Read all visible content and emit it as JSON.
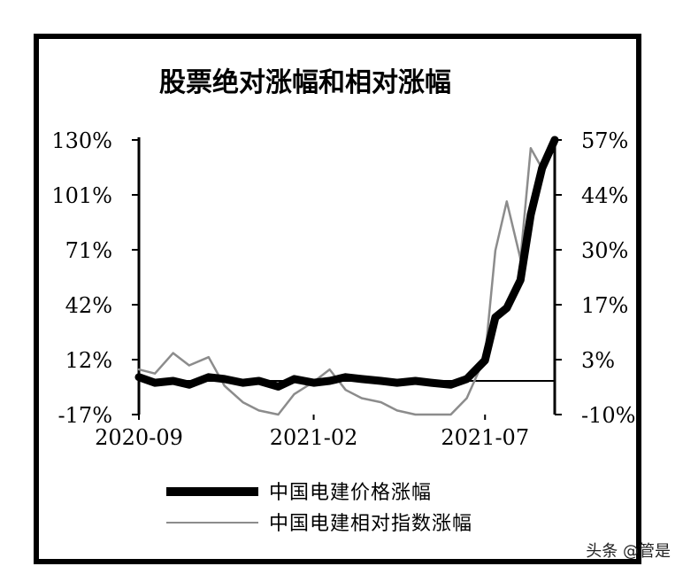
{
  "chart_data": {
    "type": "line",
    "title": "股票绝对涨幅和相对涨幅",
    "left_axis": {
      "ticks": [
        "130%",
        "101%",
        "71%",
        "42%",
        "12%",
        "-17%"
      ],
      "ylim": [
        -17,
        130
      ]
    },
    "right_axis": {
      "ticks": [
        "57%",
        "44%",
        "30%",
        "17%",
        "3%",
        "-10%"
      ],
      "ylim": [
        -10,
        57
      ]
    },
    "x_ticks": [
      "2020-09",
      "2021-02",
      "2021-07"
    ],
    "x_range": [
      "2020-09-01",
      "2021-08-31"
    ],
    "series": [
      {
        "name": "中国电建价格涨幅",
        "axis": "left",
        "color": "#000000",
        "x": [
          "2020-09-01",
          "2020-09-15",
          "2020-10-01",
          "2020-10-15",
          "2020-11-01",
          "2020-11-15",
          "2020-12-01",
          "2020-12-15",
          "2021-01-01",
          "2021-01-15",
          "2021-02-01",
          "2021-02-15",
          "2021-03-01",
          "2021-03-15",
          "2021-04-01",
          "2021-04-15",
          "2021-05-01",
          "2021-05-15",
          "2021-06-01",
          "2021-06-15",
          "2021-07-01",
          "2021-07-10",
          "2021-07-20",
          "2021-08-01",
          "2021-08-10",
          "2021-08-20",
          "2021-08-31"
        ],
        "y": [
          3,
          0,
          1,
          -1,
          3,
          2,
          0,
          1,
          -2,
          2,
          0,
          1,
          3,
          2,
          1,
          0,
          1,
          0,
          -1,
          2,
          12,
          35,
          40,
          55,
          90,
          115,
          130
        ]
      },
      {
        "name": "中国电建相对指数涨幅",
        "axis": "right",
        "color": "#8c8c8c",
        "x": [
          "2020-09-01",
          "2020-09-15",
          "2020-10-01",
          "2020-10-15",
          "2020-11-01",
          "2020-11-15",
          "2020-12-01",
          "2020-12-15",
          "2021-01-01",
          "2021-01-15",
          "2021-02-01",
          "2021-02-15",
          "2021-03-01",
          "2021-03-15",
          "2021-04-01",
          "2021-04-15",
          "2021-05-01",
          "2021-05-15",
          "2021-06-01",
          "2021-06-15",
          "2021-07-01",
          "2021-07-10",
          "2021-07-20",
          "2021-08-01",
          "2021-08-10",
          "2021-08-20",
          "2021-08-31"
        ],
        "y": [
          1,
          0,
          5,
          2,
          4,
          -3,
          -7,
          -9,
          -10,
          -5,
          -2,
          1,
          -4,
          -6,
          -7,
          -9,
          -10,
          -10,
          -10,
          -6,
          4,
          30,
          42,
          28,
          55,
          50,
          57
        ]
      }
    ],
    "legend_position": "bottom"
  },
  "watermark": "头条 @管是"
}
